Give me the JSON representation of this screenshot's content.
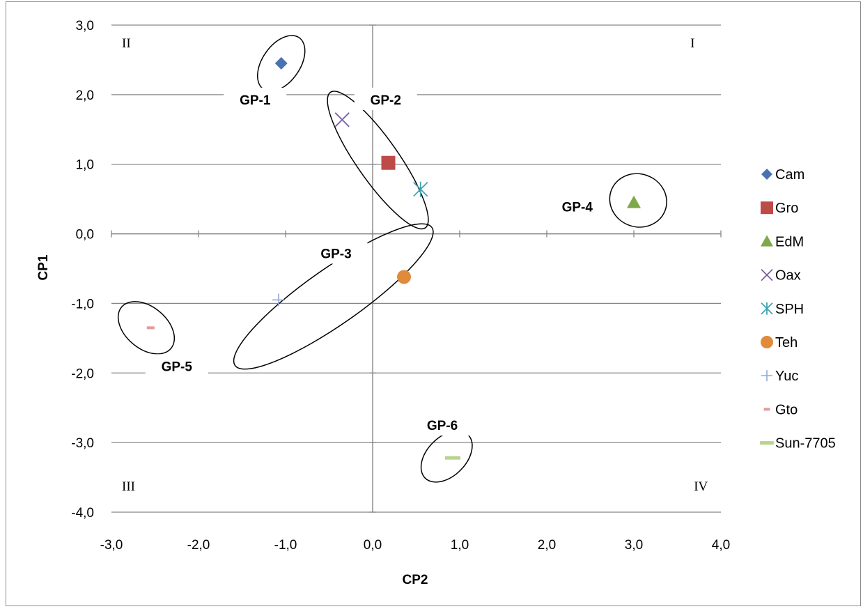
{
  "chart_data": {
    "type": "scatter",
    "xlabel": "CP2",
    "ylabel": "CP1",
    "xlim": [
      -3.0,
      4.0
    ],
    "ylim": [
      -4.0,
      3.0
    ],
    "x_ticks": [
      "-3,0",
      "-2,0",
      "-1,0",
      "0,0",
      "1,0",
      "2,0",
      "3,0",
      "4,0"
    ],
    "y_ticks": [
      "3,0",
      "2,0",
      "1,0",
      "0,0",
      "-1,0",
      "-2,0",
      "-3,0",
      "-4,0"
    ],
    "grid": "horizontal",
    "legend_position": "right",
    "series": [
      {
        "name": "Cam",
        "marker": "diamond",
        "color": "#4a72b0",
        "x": -1.05,
        "y": 2.45
      },
      {
        "name": "Gro",
        "marker": "square",
        "color": "#be4b48",
        "x": 0.18,
        "y": 1.02
      },
      {
        "name": "EdM",
        "marker": "triangle",
        "color": "#7fa84a",
        "x": 3.0,
        "y": 0.45
      },
      {
        "name": "Oax",
        "marker": "x",
        "color": "#7d5fa0",
        "x": -0.35,
        "y": 1.64
      },
      {
        "name": "SPH",
        "marker": "asterisk",
        "color": "#3ea3b4",
        "x": 0.55,
        "y": 0.64
      },
      {
        "name": "Teh",
        "marker": "circle",
        "color": "#e08a3c",
        "x": 0.36,
        "y": -0.62
      },
      {
        "name": "Yuc",
        "marker": "plus",
        "color": "#8fa8d8",
        "x": -1.08,
        "y": -0.95
      },
      {
        "name": "Gto",
        "marker": "dash",
        "color": "#e39a9a",
        "x": -2.55,
        "y": -1.35
      },
      {
        "name": "Sun-7705",
        "marker": "bar",
        "color": "#b6d48e",
        "x": 0.92,
        "y": -3.22
      }
    ],
    "quadrant_labels": [
      "I",
      "II",
      "III",
      "IV"
    ],
    "group_labels": [
      {
        "label": "GP-1",
        "x": -1.35,
        "y": 1.93,
        "ellipse": {
          "cx": -1.05,
          "cy": 2.45,
          "rx": 0.36,
          "ry": 0.27,
          "angle": -55
        }
      },
      {
        "label": "GP-2",
        "x": 0.15,
        "y": 1.93,
        "ellipse": {
          "cx": 0.06,
          "cy": 1.06,
          "rx": 0.95,
          "ry": 0.3,
          "angle": 55
        }
      },
      {
        "label": "GP-3",
        "x": -0.42,
        "y": -0.28,
        "ellipse": {
          "cx": -0.45,
          "cy": -0.9,
          "rx": 1.38,
          "ry": 0.4,
          "angle": -35
        }
      },
      {
        "label": "GP-4",
        "x": 2.35,
        "y": 0.39,
        "ellipse": {
          "cx": 3.05,
          "cy": 0.48,
          "rx": 0.33,
          "ry": 0.38,
          "angle": 20
        }
      },
      {
        "label": "GP-5",
        "x": -2.25,
        "y": -1.9,
        "ellipse": {
          "cx": -2.6,
          "cy": -1.35,
          "rx": 0.37,
          "ry": 0.3,
          "angle": 40
        }
      },
      {
        "label": "GP-6",
        "x": 0.8,
        "y": -2.75,
        "ellipse": {
          "cx": 0.85,
          "cy": -3.2,
          "rx": 0.35,
          "ry": 0.28,
          "angle": -45
        }
      }
    ]
  }
}
